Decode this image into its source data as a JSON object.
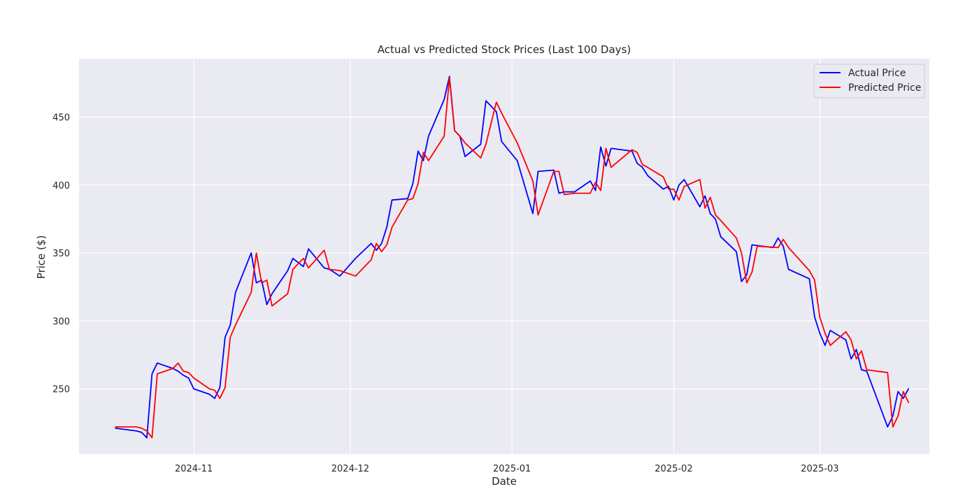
{
  "chart_data": {
    "type": "line",
    "title": "Actual vs Predicted Stock Prices (Last 100 Days)",
    "xlabel": "Date",
    "ylabel": "Price ($)",
    "xlim": [
      "2024-10-10",
      "2025-03-22"
    ],
    "ylim": [
      202,
      493
    ],
    "grid": true,
    "legend_position": "top-right",
    "x_ticks": [
      "2024-11",
      "2024-12",
      "2025-01",
      "2025-02",
      "2025-03"
    ],
    "y_ticks": [
      250,
      300,
      350,
      400,
      450
    ],
    "series": [
      {
        "name": "Actual Price",
        "color": "#0000ff",
        "points": [
          [
            "2024-10-17",
            221
          ],
          [
            "2024-10-21",
            219
          ],
          [
            "2024-10-22",
            218
          ],
          [
            "2024-10-23",
            214
          ],
          [
            "2024-10-24",
            261
          ],
          [
            "2024-10-25",
            269
          ],
          [
            "2024-10-28",
            265
          ],
          [
            "2024-10-29",
            263
          ],
          [
            "2024-10-30",
            260
          ],
          [
            "2024-10-31",
            258
          ],
          [
            "2024-11-01",
            250
          ],
          [
            "2024-11-04",
            246
          ],
          [
            "2024-11-05",
            243
          ],
          [
            "2024-11-06",
            251
          ],
          [
            "2024-11-07",
            288
          ],
          [
            "2024-11-08",
            297
          ],
          [
            "2024-11-09",
            321
          ],
          [
            "2024-11-12",
            350
          ],
          [
            "2024-11-13",
            328
          ],
          [
            "2024-11-14",
            330
          ],
          [
            "2024-11-15",
            312
          ],
          [
            "2024-11-16",
            320
          ],
          [
            "2024-11-19",
            337
          ],
          [
            "2024-11-20",
            346
          ],
          [
            "2024-11-22",
            340
          ],
          [
            "2024-11-23",
            353
          ],
          [
            "2024-11-26",
            339
          ],
          [
            "2024-11-27",
            338
          ],
          [
            "2024-11-29",
            333
          ],
          [
            "2024-12-02",
            346
          ],
          [
            "2024-12-05",
            357
          ],
          [
            "2024-12-06",
            352
          ],
          [
            "2024-12-07",
            357
          ],
          [
            "2024-12-08",
            369
          ],
          [
            "2024-12-09",
            389
          ],
          [
            "2024-12-12",
            390
          ],
          [
            "2024-12-13",
            401
          ],
          [
            "2024-12-14",
            425
          ],
          [
            "2024-12-15",
            418
          ],
          [
            "2024-12-16",
            436
          ],
          [
            "2024-12-19",
            463
          ],
          [
            "2024-12-20",
            480
          ],
          [
            "2024-12-21",
            440
          ],
          [
            "2024-12-22",
            436
          ],
          [
            "2024-12-23",
            421
          ],
          [
            "2024-12-26",
            430
          ],
          [
            "2024-12-27",
            462
          ],
          [
            "2024-12-29",
            454
          ],
          [
            "2024-12-30",
            432
          ],
          [
            "2025-01-02",
            418
          ],
          [
            "2025-01-05",
            379
          ],
          [
            "2025-01-06",
            410
          ],
          [
            "2025-01-09",
            411
          ],
          [
            "2025-01-10",
            394
          ],
          [
            "2025-01-11",
            395
          ],
          [
            "2025-01-13",
            395
          ],
          [
            "2025-01-16",
            403
          ],
          [
            "2025-01-17",
            396
          ],
          [
            "2025-01-18",
            428
          ],
          [
            "2025-01-19",
            414
          ],
          [
            "2025-01-20",
            427
          ],
          [
            "2025-01-24",
            425
          ],
          [
            "2025-01-25",
            416
          ],
          [
            "2025-01-26",
            413
          ],
          [
            "2025-01-27",
            407
          ],
          [
            "2025-01-30",
            397
          ],
          [
            "2025-01-31",
            399
          ],
          [
            "2025-02-01",
            389
          ],
          [
            "2025-02-02",
            400
          ],
          [
            "2025-02-03",
            404
          ],
          [
            "2025-02-06",
            384
          ],
          [
            "2025-02-07",
            392
          ],
          [
            "2025-02-08",
            379
          ],
          [
            "2025-02-09",
            375
          ],
          [
            "2025-02-10",
            362
          ],
          [
            "2025-02-13",
            351
          ],
          [
            "2025-02-14",
            329
          ],
          [
            "2025-02-15",
            334
          ],
          [
            "2025-02-16",
            356
          ],
          [
            "2025-02-20",
            354
          ],
          [
            "2025-02-21",
            361
          ],
          [
            "2025-02-22",
            355
          ],
          [
            "2025-02-23",
            338
          ],
          [
            "2025-02-27",
            331
          ],
          [
            "2025-02-28",
            303
          ],
          [
            "2025-03-01",
            291
          ],
          [
            "2025-03-02",
            282
          ],
          [
            "2025-03-03",
            293
          ],
          [
            "2025-03-06",
            286
          ],
          [
            "2025-03-07",
            272
          ],
          [
            "2025-03-08",
            279
          ],
          [
            "2025-03-09",
            264
          ],
          [
            "2025-03-10",
            263
          ],
          [
            "2025-03-14",
            222
          ],
          [
            "2025-03-15",
            230
          ],
          [
            "2025-03-16",
            248
          ],
          [
            "2025-03-17",
            243
          ],
          [
            "2025-03-18",
            250
          ]
        ]
      },
      {
        "name": "Predicted Price",
        "color": "#ff0000",
        "points": [
          [
            "2024-10-17",
            222
          ],
          [
            "2024-10-21",
            222
          ],
          [
            "2024-10-22",
            221
          ],
          [
            "2024-10-23",
            219
          ],
          [
            "2024-10-24",
            214
          ],
          [
            "2024-10-25",
            261
          ],
          [
            "2024-10-28",
            265
          ],
          [
            "2024-10-29",
            269
          ],
          [
            "2024-10-30",
            263
          ],
          [
            "2024-10-31",
            262
          ],
          [
            "2024-11-01",
            258
          ],
          [
            "2024-11-04",
            250
          ],
          [
            "2024-11-05",
            249
          ],
          [
            "2024-11-06",
            243
          ],
          [
            "2024-11-07",
            251
          ],
          [
            "2024-11-08",
            288
          ],
          [
            "2024-11-09",
            297
          ],
          [
            "2024-11-12",
            321
          ],
          [
            "2024-11-13",
            350
          ],
          [
            "2024-11-14",
            328
          ],
          [
            "2024-11-15",
            330
          ],
          [
            "2024-11-16",
            311
          ],
          [
            "2024-11-19",
            320
          ],
          [
            "2024-11-20",
            338
          ],
          [
            "2024-11-22",
            346
          ],
          [
            "2024-11-23",
            339
          ],
          [
            "2024-11-26",
            352
          ],
          [
            "2024-11-27",
            338
          ],
          [
            "2024-11-29",
            337
          ],
          [
            "2024-12-02",
            333
          ],
          [
            "2024-12-05",
            345
          ],
          [
            "2024-12-06",
            357
          ],
          [
            "2024-12-07",
            351
          ],
          [
            "2024-12-08",
            356
          ],
          [
            "2024-12-09",
            369
          ],
          [
            "2024-12-12",
            389
          ],
          [
            "2024-12-13",
            390
          ],
          [
            "2024-12-14",
            401
          ],
          [
            "2024-12-15",
            424
          ],
          [
            "2024-12-16",
            418
          ],
          [
            "2024-12-19",
            436
          ],
          [
            "2024-12-20",
            479
          ],
          [
            "2024-12-21",
            440
          ],
          [
            "2024-12-22",
            436
          ],
          [
            "2024-12-23",
            431
          ],
          [
            "2024-12-26",
            420
          ],
          [
            "2024-12-27",
            430
          ],
          [
            "2024-12-29",
            461
          ],
          [
            "2024-12-30",
            453
          ],
          [
            "2025-01-02",
            431
          ],
          [
            "2025-01-05",
            403
          ],
          [
            "2025-01-06",
            378
          ],
          [
            "2025-01-09",
            410
          ],
          [
            "2025-01-10",
            410
          ],
          [
            "2025-01-11",
            393
          ],
          [
            "2025-01-13",
            394
          ],
          [
            "2025-01-16",
            394
          ],
          [
            "2025-01-17",
            402
          ],
          [
            "2025-01-18",
            396
          ],
          [
            "2025-01-19",
            427
          ],
          [
            "2025-01-20",
            413
          ],
          [
            "2025-01-24",
            426
          ],
          [
            "2025-01-25",
            424
          ],
          [
            "2025-01-26",
            415
          ],
          [
            "2025-01-27",
            413
          ],
          [
            "2025-01-30",
            406
          ],
          [
            "2025-01-31",
            397
          ],
          [
            "2025-02-01",
            397
          ],
          [
            "2025-02-02",
            389
          ],
          [
            "2025-02-03",
            399
          ],
          [
            "2025-02-06",
            404
          ],
          [
            "2025-02-07",
            383
          ],
          [
            "2025-02-08",
            391
          ],
          [
            "2025-02-09",
            378
          ],
          [
            "2025-02-10",
            374
          ],
          [
            "2025-02-13",
            361
          ],
          [
            "2025-02-14",
            350
          ],
          [
            "2025-02-15",
            328
          ],
          [
            "2025-02-16",
            336
          ],
          [
            "2025-02-17",
            355
          ],
          [
            "2025-02-21",
            354
          ],
          [
            "2025-02-22",
            360
          ],
          [
            "2025-02-23",
            354
          ],
          [
            "2025-02-27",
            337
          ],
          [
            "2025-02-28",
            330
          ],
          [
            "2025-03-01",
            303
          ],
          [
            "2025-03-02",
            291
          ],
          [
            "2025-03-03",
            282
          ],
          [
            "2025-03-06",
            292
          ],
          [
            "2025-03-07",
            286
          ],
          [
            "2025-03-08",
            272
          ],
          [
            "2025-03-09",
            278
          ],
          [
            "2025-03-10",
            264
          ],
          [
            "2025-03-14",
            262
          ],
          [
            "2025-03-15",
            222
          ],
          [
            "2025-03-16",
            230
          ],
          [
            "2025-03-17",
            248
          ],
          [
            "2025-03-18",
            240
          ]
        ]
      }
    ]
  }
}
